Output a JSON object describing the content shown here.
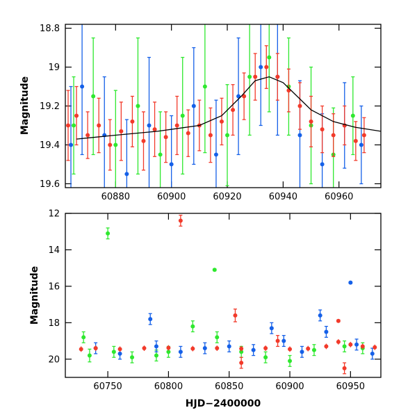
{
  "chart_data": [
    {
      "type": "scatter",
      "title": "",
      "xlabel": "",
      "ylabel": "Magnitude",
      "xlim": [
        60862,
        60975
      ],
      "ylim": [
        19.62,
        18.78
      ],
      "y_inverted": true,
      "xticks": [
        60880,
        60900,
        60920,
        60940,
        60960
      ],
      "yticks": [
        18.8,
        19,
        19.2,
        19.4,
        19.6
      ],
      "xtick_labels": [
        "60880",
        "60900",
        "60920",
        "60940",
        "60960"
      ],
      "ytick_labels": [
        "18.8",
        "19",
        "19.2",
        "19.4",
        "19.6"
      ],
      "series": [
        {
          "name": "green",
          "color": "#2ee82e",
          "points": [
            [
              60865,
              19.3,
              0.25
            ],
            [
              60872,
              19.15,
              0.3
            ],
            [
              60880,
              19.4,
              0.28
            ],
            [
              60888,
              19.2,
              0.35
            ],
            [
              60896,
              19.45,
              0.22
            ],
            [
              60904,
              19.25,
              0.3
            ],
            [
              60912,
              19.1,
              0.34
            ],
            [
              60920,
              19.35,
              0.26
            ],
            [
              60928,
              19.05,
              0.3
            ],
            [
              60935,
              18.95,
              0.28
            ],
            [
              60942,
              19.1,
              0.25
            ],
            [
              60950,
              19.3,
              0.3
            ],
            [
              60958,
              19.45,
              0.24
            ],
            [
              60965,
              19.25,
              0.2
            ]
          ]
        },
        {
          "name": "blue",
          "color": "#1560e8",
          "points": [
            [
              60864,
              19.4,
              0.3
            ],
            [
              60868,
              19.1,
              0.35
            ],
            [
              60876,
              19.35,
              0.3
            ],
            [
              60884,
              19.55,
              0.28
            ],
            [
              60892,
              19.3,
              0.35
            ],
            [
              60900,
              19.5,
              0.25
            ],
            [
              60908,
              19.2,
              0.3
            ],
            [
              60916,
              19.45,
              0.28
            ],
            [
              60924,
              19.15,
              0.3
            ],
            [
              60932,
              19.0,
              0.3
            ],
            [
              60938,
              19.05,
              0.3
            ],
            [
              60946,
              19.35,
              0.28
            ],
            [
              60954,
              19.5,
              0.26
            ],
            [
              60962,
              19.3,
              0.22
            ],
            [
              60968,
              19.4,
              0.2
            ]
          ]
        },
        {
          "name": "red",
          "color": "#f23a2a",
          "points": [
            [
              60863,
              19.3,
              0.18
            ],
            [
              60866,
              19.25,
              0.15
            ],
            [
              60870,
              19.35,
              0.12
            ],
            [
              60874,
              19.3,
              0.14
            ],
            [
              60878,
              19.4,
              0.13
            ],
            [
              60882,
              19.33,
              0.15
            ],
            [
              60886,
              19.28,
              0.13
            ],
            [
              60890,
              19.38,
              0.15
            ],
            [
              60894,
              19.32,
              0.14
            ],
            [
              60898,
              19.36,
              0.13
            ],
            [
              60902,
              19.3,
              0.15
            ],
            [
              60906,
              19.34,
              0.12
            ],
            [
              60910,
              19.3,
              0.13
            ],
            [
              60914,
              19.35,
              0.14
            ],
            [
              60918,
              19.28,
              0.12
            ],
            [
              60922,
              19.22,
              0.13
            ],
            [
              60926,
              19.15,
              0.12
            ],
            [
              60930,
              19.05,
              0.12
            ],
            [
              60934,
              19.0,
              0.11
            ],
            [
              60938,
              19.05,
              0.12
            ],
            [
              60942,
              19.12,
              0.11
            ],
            [
              60946,
              19.2,
              0.12
            ],
            [
              60950,
              19.28,
              0.13
            ],
            [
              60954,
              19.32,
              0.12
            ],
            [
              60958,
              19.35,
              0.11
            ],
            [
              60962,
              19.3,
              0.1
            ],
            [
              60966,
              19.38,
              0.1
            ],
            [
              60969,
              19.35,
              0.09
            ]
          ]
        }
      ],
      "model_curve": {
        "name": "model",
        "color": "#000000",
        "x": [
          60866,
          60880,
          60895,
          60910,
          60918,
          60925,
          60930,
          60935,
          60940,
          60945,
          60950,
          60958,
          60966,
          60975
        ],
        "y": [
          19.37,
          19.35,
          19.33,
          19.3,
          19.25,
          19.15,
          19.07,
          19.05,
          19.08,
          19.15,
          19.22,
          19.28,
          19.31,
          19.33
        ]
      }
    },
    {
      "type": "scatter",
      "title": "",
      "xlabel": "HJD−2400000",
      "ylabel": "Magnitude",
      "xlim": [
        60715,
        60975
      ],
      "ylim": [
        21,
        12
      ],
      "y_inverted": true,
      "xticks": [
        60750,
        60800,
        60850,
        60900,
        60950
      ],
      "yticks": [
        12,
        14,
        16,
        18,
        20
      ],
      "xtick_labels": [
        "60750",
        "60800",
        "60850",
        "60900",
        "60950"
      ],
      "ytick_labels": [
        "12",
        "14",
        "16",
        "18",
        "20"
      ],
      "series": [
        {
          "name": "green",
          "color": "#2ee82e",
          "points": [
            [
              60730,
              18.8,
              0.3
            ],
            [
              60735,
              19.8,
              0.35
            ],
            [
              60750,
              13.1,
              0.3
            ],
            [
              60755,
              19.6,
              0.3
            ],
            [
              60770,
              19.9,
              0.3
            ],
            [
              60790,
              19.8,
              0.3
            ],
            [
              60800,
              19.6,
              0.3
            ],
            [
              60820,
              18.2,
              0.3
            ],
            [
              60838,
              15.1,
              0.05
            ],
            [
              60840,
              18.8,
              0.3
            ],
            [
              60860,
              19.6,
              0.3
            ],
            [
              60880,
              19.9,
              0.3
            ],
            [
              60900,
              20.1,
              0.3
            ],
            [
              60920,
              19.5,
              0.3
            ],
            [
              60945,
              19.3,
              0.3
            ],
            [
              60960,
              19.4,
              0.3
            ]
          ]
        },
        {
          "name": "blue",
          "color": "#1560e8",
          "points": [
            [
              60740,
              19.4,
              0.3
            ],
            [
              60760,
              19.7,
              0.3
            ],
            [
              60785,
              17.8,
              0.3
            ],
            [
              60790,
              19.3,
              0.3
            ],
            [
              60810,
              19.6,
              0.3
            ],
            [
              60830,
              19.4,
              0.3
            ],
            [
              60850,
              19.3,
              0.3
            ],
            [
              60870,
              19.5,
              0.3
            ],
            [
              60885,
              18.3,
              0.3
            ],
            [
              60895,
              19.0,
              0.3
            ],
            [
              60910,
              19.6,
              0.3
            ],
            [
              60925,
              17.6,
              0.3
            ],
            [
              60930,
              18.5,
              0.3
            ],
            [
              60950,
              15.8,
              0.05
            ],
            [
              60955,
              19.2,
              0.3
            ],
            [
              60968,
              19.7,
              0.3
            ]
          ]
        },
        {
          "name": "red",
          "color": "#f23a2a",
          "points": [
            [
              60810,
              12.4,
              0.3
            ],
            [
              60855,
              17.6,
              0.35
            ],
            [
              60860,
              20.2,
              0.3
            ],
            [
              60940,
              17.9,
              0.05
            ],
            [
              60945,
              20.5,
              0.3
            ],
            [
              60890,
              19.0,
              0.3
            ]
          ]
        },
        {
          "name": "red-band",
          "color": "#f23a2a",
          "band": true,
          "x": [
            60728,
            60740,
            60760,
            60780,
            60800,
            60820,
            60840,
            60860,
            60880,
            60900,
            60915,
            60930,
            60940,
            60950,
            60960,
            60970
          ],
          "y": [
            19.45,
            19.4,
            19.45,
            19.4,
            19.38,
            19.42,
            19.4,
            19.42,
            19.4,
            19.45,
            19.42,
            19.3,
            19.05,
            19.2,
            19.3,
            19.35
          ],
          "err": [
            0.15,
            0.15,
            0.15,
            0.15,
            0.15,
            0.15,
            0.15,
            0.15,
            0.15,
            0.15,
            0.15,
            0.15,
            0.15,
            0.15,
            0.15,
            0.15
          ]
        }
      ]
    }
  ]
}
